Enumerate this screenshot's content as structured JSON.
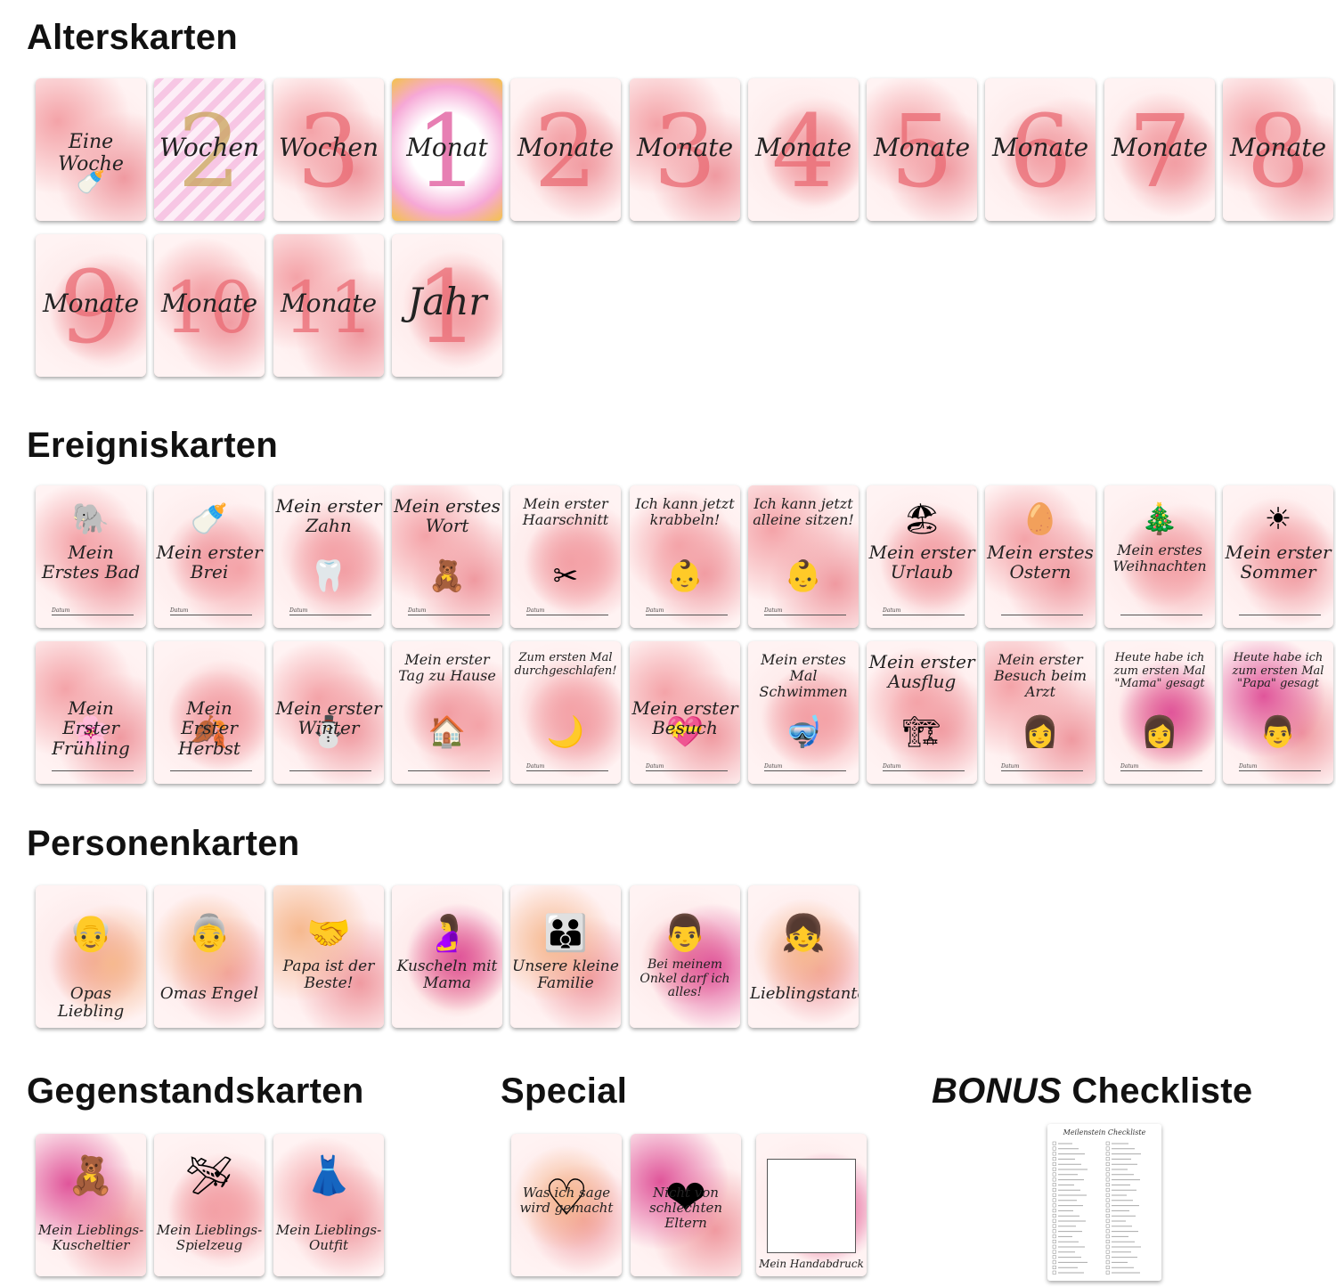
{
  "sections": {
    "alter": "Alterskarten",
    "ereignis": "Ereigniskarten",
    "personen": "Personenkarten",
    "gegenstand": "Gegenstandskarten",
    "special": "Special",
    "bonus_word": "BONUS",
    "bonus_rest": " Checkliste"
  },
  "alter_cards": [
    {
      "num": "",
      "caption": "Eine Woche"
    },
    {
      "num": "2",
      "caption": "Wochen"
    },
    {
      "num": "3",
      "caption": "Wochen"
    },
    {
      "num": "1",
      "caption": "Monat"
    },
    {
      "num": "2",
      "caption": "Monate"
    },
    {
      "num": "3",
      "caption": "Monate"
    },
    {
      "num": "4",
      "caption": "Monate"
    },
    {
      "num": "5",
      "caption": "Monate"
    },
    {
      "num": "6",
      "caption": "Monate"
    },
    {
      "num": "7",
      "caption": "Monate"
    },
    {
      "num": "8",
      "caption": "Monate"
    },
    {
      "num": "9",
      "caption": "Monate"
    },
    {
      "num": "10",
      "caption": "Monate"
    },
    {
      "num": "11",
      "caption": "Monate"
    },
    {
      "num": "1",
      "caption": "Jahr"
    }
  ],
  "ereignis_cards": [
    {
      "caption": "Mein Erstes Bad",
      "datum": "Datum"
    },
    {
      "caption": "Mein erster Brei",
      "datum": "Datum"
    },
    {
      "caption": "Mein erster Zahn",
      "datum": "Datum"
    },
    {
      "caption": "Mein erstes Wort",
      "datum": "Datum"
    },
    {
      "caption": "Mein erster Haarschnitt",
      "datum": "Datum"
    },
    {
      "caption": "Ich kann jetzt krabbeln!",
      "datum": "Datum"
    },
    {
      "caption": "Ich kann jetzt alleine sitzen!",
      "datum": "Datum"
    },
    {
      "caption": "Mein erster Urlaub",
      "datum": "Datum"
    },
    {
      "caption": "Mein erstes Ostern",
      "datum": ""
    },
    {
      "caption": "Mein erstes Weihnachten",
      "datum": ""
    },
    {
      "caption": "Mein erster Sommer",
      "datum": ""
    },
    {
      "caption": "Mein Erster Frühling",
      "datum": ""
    },
    {
      "caption": "Mein Erster Herbst",
      "datum": ""
    },
    {
      "caption": "Mein erster Winter",
      "datum": ""
    },
    {
      "caption": "Mein erster Tag zu Hause",
      "datum": ""
    },
    {
      "caption": "Zum ersten Mal durchgeschlafen!",
      "datum": "Datum"
    },
    {
      "caption": "Mein erster Besuch",
      "datum": "Datum"
    },
    {
      "caption": "Mein erstes Mal Schwimmen",
      "datum": "Datum"
    },
    {
      "caption": "Mein erster Ausflug",
      "datum": "Datum"
    },
    {
      "caption": "Mein erster Besuch beim Arzt",
      "datum": "Datum"
    },
    {
      "caption": "Heute habe ich zum ersten Mal \"Mama\" gesagt",
      "datum": "Datum"
    },
    {
      "caption": "Heute habe ich zum ersten Mal \"Papa\" gesagt",
      "datum": "Datum"
    }
  ],
  "personen_cards": [
    {
      "caption": "Opas Liebling"
    },
    {
      "caption": "Omas Engel"
    },
    {
      "caption": "Papa ist der Beste!"
    },
    {
      "caption": "Kuscheln mit Mama"
    },
    {
      "caption": "Unsere kleine Familie"
    },
    {
      "caption": "Bei meinem Onkel darf ich alles!"
    },
    {
      "caption": "Lieblingstante"
    }
  ],
  "gegenstand_cards": [
    {
      "caption": "Mein Lieblings-Kuscheltier"
    },
    {
      "caption": "Mein Lieblings-Spielzeug"
    },
    {
      "caption": "Mein Lieblings-Outfit"
    }
  ],
  "special_cards": [
    {
      "caption": "Was ich sage wird gemacht"
    },
    {
      "caption": "Nicht von schlechten Eltern"
    },
    {
      "caption": "Mein Handabdruck"
    }
  ],
  "checklist": {
    "title": "Meilenstein Checkliste"
  },
  "colors": {
    "blush": "#f4a3a8",
    "rose": "#e8707a",
    "peach": "#f6b98f",
    "magenta": "#e0559a"
  }
}
